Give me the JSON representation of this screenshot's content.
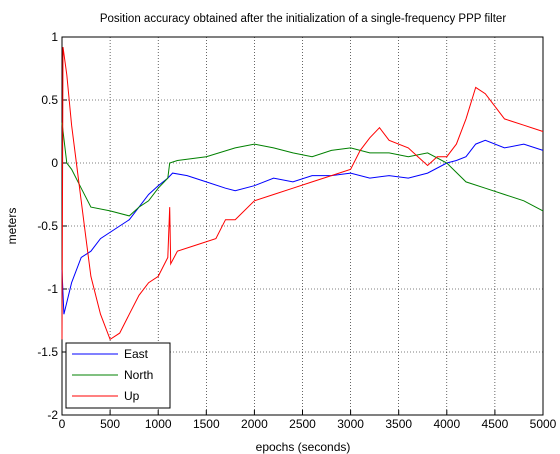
{
  "chart_data": {
    "type": "line",
    "title": "Position accuracy obtained after the initialization of a single-frequency PPP filter",
    "xlabel": "epochs (seconds)",
    "ylabel": "meters",
    "xlim": [
      0,
      5000
    ],
    "xticks": [
      0,
      500,
      1000,
      1500,
      2000,
      2500,
      3000,
      3500,
      4000,
      4500,
      5000
    ],
    "ylim": [
      -2,
      1
    ],
    "yticks": [
      -2,
      -1.5,
      -1,
      -0.5,
      0,
      0.5,
      1
    ],
    "grid": true,
    "legend": "lower-left",
    "series": [
      {
        "name": "East",
        "color": "#0000ff",
        "x": [
          0,
          20,
          100,
          200,
          300,
          400,
          600,
          700,
          800,
          900,
          1000,
          1100,
          1150,
          1300,
          1500,
          1700,
          1800,
          2000,
          2200,
          2400,
          2600,
          2800,
          3000,
          3200,
          3400,
          3600,
          3800,
          4000,
          4100,
          4200,
          4300,
          4400,
          4600,
          4800,
          5000
        ],
        "values": [
          -0.85,
          -1.2,
          -0.95,
          -0.75,
          -0.7,
          -0.6,
          -0.5,
          -0.45,
          -0.35,
          -0.25,
          -0.18,
          -0.12,
          -0.08,
          -0.1,
          -0.15,
          -0.2,
          -0.22,
          -0.18,
          -0.12,
          -0.15,
          -0.1,
          -0.1,
          -0.08,
          -0.12,
          -0.1,
          -0.12,
          -0.08,
          0,
          0.02,
          0.05,
          0.15,
          0.18,
          0.12,
          0.15,
          0.1
        ]
      },
      {
        "name": "North",
        "color": "#008000",
        "x": [
          0,
          50,
          100,
          200,
          300,
          500,
          700,
          800,
          900,
          1000,
          1100,
          1120,
          1200,
          1500,
          1800,
          2000,
          2200,
          2400,
          2600,
          2800,
          3000,
          3200,
          3400,
          3600,
          3800,
          4000,
          4200,
          4400,
          4600,
          4800,
          5000
        ],
        "values": [
          0.32,
          0,
          -0.05,
          -0.2,
          -0.35,
          -0.38,
          -0.42,
          -0.35,
          -0.3,
          -0.2,
          -0.12,
          0,
          0.02,
          0.05,
          0.12,
          0.15,
          0.12,
          0.08,
          0.05,
          0.1,
          0.12,
          0.08,
          0.08,
          0.05,
          0.08,
          0,
          -0.15,
          -0.2,
          -0.25,
          -0.3,
          -0.38
        ]
      },
      {
        "name": "Up",
        "color": "#ff0000",
        "x": [
          0,
          10,
          50,
          100,
          150,
          200,
          250,
          300,
          400,
          500,
          600,
          700,
          800,
          900,
          1000,
          1100,
          1120,
          1130,
          1200,
          1400,
          1600,
          1700,
          1800,
          2000,
          2200,
          2400,
          2600,
          2800,
          3000,
          3100,
          3200,
          3300,
          3400,
          3600,
          3700,
          3800,
          3900,
          4000,
          4100,
          4200,
          4300,
          4400,
          4500,
          4600,
          4800,
          5000
        ],
        "values": [
          -1.4,
          0.92,
          0.7,
          0.3,
          0,
          -0.3,
          -0.6,
          -0.9,
          -1.2,
          -1.4,
          -1.35,
          -1.2,
          -1.05,
          -0.95,
          -0.9,
          -0.75,
          -0.35,
          -0.8,
          -0.7,
          -0.65,
          -0.6,
          -0.45,
          -0.45,
          -0.3,
          -0.25,
          -0.2,
          -0.15,
          -0.1,
          -0.05,
          0.1,
          0.2,
          0.28,
          0.18,
          0.12,
          0.05,
          -0.02,
          0.05,
          0.05,
          0.15,
          0.35,
          0.6,
          0.55,
          0.45,
          0.35,
          0.3,
          0.25
        ]
      }
    ]
  }
}
